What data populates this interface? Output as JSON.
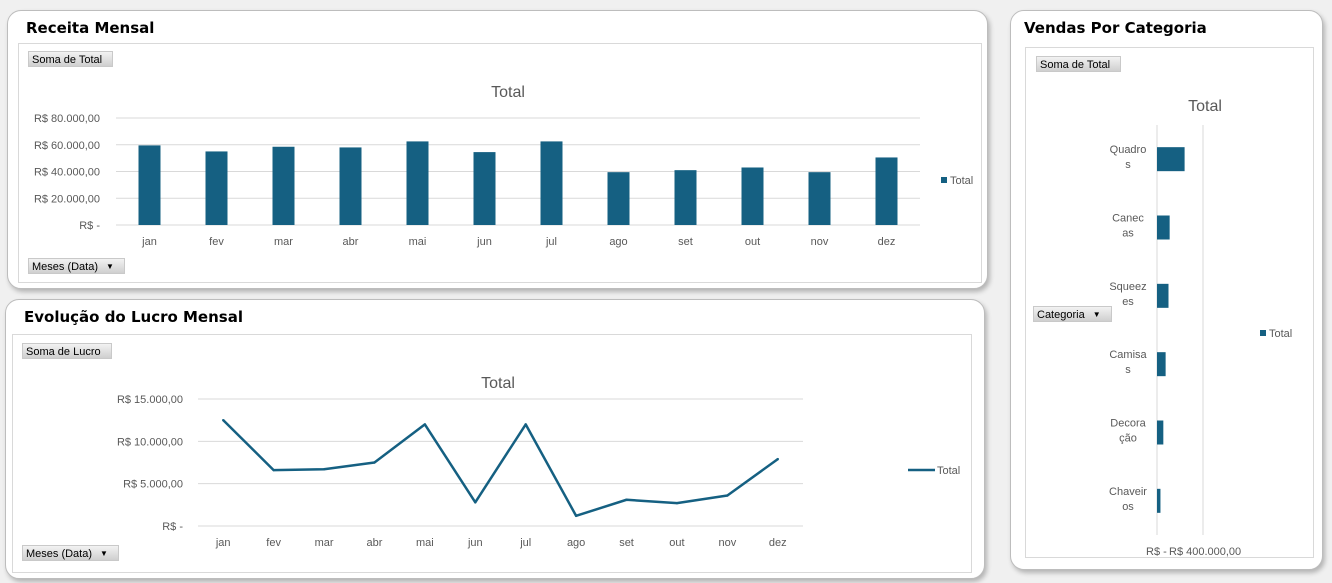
{
  "panels": {
    "revenue": {
      "title": "Receita Mensal",
      "value_button": "Soma de Total",
      "axis_button": "Meses (Data)",
      "legend": "Total"
    },
    "profit": {
      "title": "Evolução do Lucro Mensal",
      "value_button": "Soma de Lucro",
      "axis_button": "Meses (Data)",
      "legend": "Total"
    },
    "category": {
      "title": "Vendas Por Categoria",
      "value_button": "Soma de Total",
      "axis_button": "Categoria",
      "legend": "Total"
    }
  },
  "colors": {
    "series": "#156082",
    "grid": "#d9d9d9"
  },
  "icons": {
    "dropdown": "dropdown-arrow-icon",
    "legend_marker": "legend-square-icon"
  },
  "chart_data": [
    {
      "id": "revenue",
      "type": "bar",
      "title": "Total",
      "categories": [
        "jan",
        "fev",
        "mar",
        "abr",
        "mai",
        "jun",
        "jul",
        "ago",
        "set",
        "out",
        "nov",
        "dez"
      ],
      "series": [
        {
          "name": "Total",
          "values": [
            59500,
            55000,
            58500,
            58000,
            62500,
            54500,
            62500,
            39500,
            41000,
            43000,
            39500,
            50500
          ]
        }
      ],
      "ylim": [
        0,
        80000
      ],
      "yticks": [
        0,
        20000,
        40000,
        60000,
        80000
      ],
      "ytick_labels": [
        "R$ -",
        "R$ 20.000,00",
        "R$ 40.000,00",
        "R$ 60.000,00",
        "R$ 80.000,00"
      ],
      "grid": true,
      "legend": "right"
    },
    {
      "id": "profit",
      "type": "line",
      "title": "Total",
      "categories": [
        "jan",
        "fev",
        "mar",
        "abr",
        "mai",
        "jun",
        "jul",
        "ago",
        "set",
        "out",
        "nov",
        "dez"
      ],
      "series": [
        {
          "name": "Total",
          "values": [
            12500,
            6600,
            6700,
            7500,
            12000,
            2800,
            12000,
            1200,
            3100,
            2700,
            3600,
            7900
          ]
        }
      ],
      "ylim": [
        0,
        15000
      ],
      "yticks": [
        0,
        5000,
        10000,
        15000
      ],
      "ytick_labels": [
        "R$ -",
        "R$ 5.000,00",
        "R$ 10.000,00",
        "R$ 15.000,00"
      ],
      "grid": true,
      "legend": "right"
    },
    {
      "id": "category",
      "type": "bar",
      "orientation": "horizontal",
      "title": "Total",
      "categories": [
        "Quadros",
        "Canecas",
        "Squeezes",
        "Camisas",
        "Decoração",
        "Chaveiros"
      ],
      "category_lines": [
        [
          "Quadro",
          "s"
        ],
        [
          "Canec",
          "as"
        ],
        [
          "Squeez",
          "es"
        ],
        [
          "Camisa",
          "s"
        ],
        [
          "Decora",
          "ção"
        ],
        [
          "Chaveir",
          "os"
        ]
      ],
      "series": [
        {
          "name": "Total",
          "values": [
            240000,
            110000,
            100000,
            75000,
            55000,
            30000
          ]
        }
      ],
      "xlim": [
        0,
        400000
      ],
      "xticks": [
        0,
        400000
      ],
      "xtick_labels": [
        "R$ -",
        "R$ 400.000,00"
      ],
      "grid": true,
      "legend": "right"
    }
  ]
}
